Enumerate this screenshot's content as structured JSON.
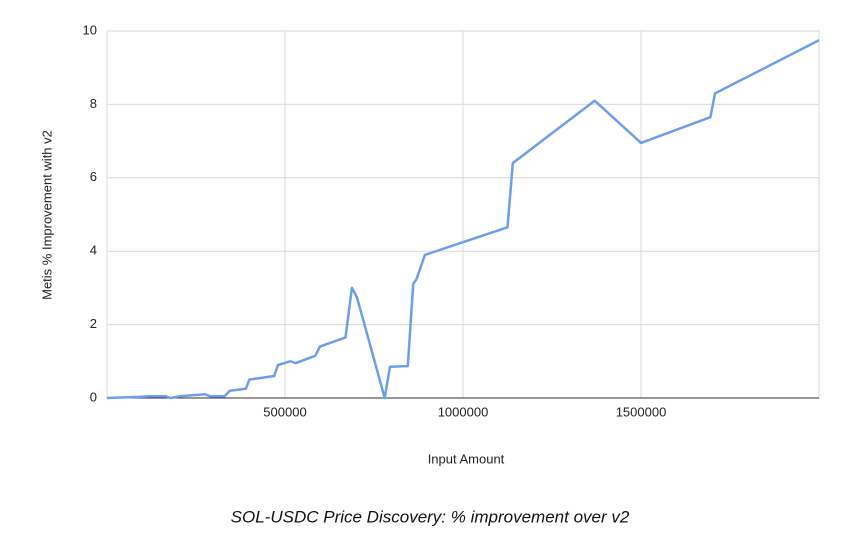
{
  "chart_data": {
    "type": "line",
    "title": "SOL-USDC Price Discovery: % improvement over v2",
    "x_label": "Input Amount",
    "y_label": "Metis % Improvement with v2",
    "xlim": [
      0,
      2000000
    ],
    "ylim": [
      0,
      10
    ],
    "xticks": [
      500000,
      1000000,
      1500000
    ],
    "yticks": [
      0,
      2,
      4,
      6,
      8,
      10
    ],
    "grid": true,
    "color": "#6d9eeb",
    "x": [
      0,
      90000,
      120000,
      165000,
      178000,
      205000,
      275000,
      290000,
      330000,
      345000,
      390000,
      400000,
      470000,
      480000,
      515000,
      530000,
      585000,
      598000,
      670000,
      688000,
      702000,
      780000,
      795000,
      845000,
      860000,
      870000,
      893000,
      1125000,
      1140000,
      1370000,
      1500000,
      1695000,
      1708000,
      2000000
    ],
    "values": [
      0,
      0.03,
      0.05,
      0.05,
      0,
      0.05,
      0.1,
      0.05,
      0.05,
      0.2,
      0.25,
      0.5,
      0.6,
      0.9,
      1.0,
      0.95,
      1.15,
      1.4,
      1.65,
      3.0,
      2.75,
      0,
      0.85,
      0.87,
      3.1,
      3.25,
      3.9,
      4.65,
      6.4,
      8.1,
      6.95,
      7.65,
      8.3,
      9.75
    ]
  }
}
